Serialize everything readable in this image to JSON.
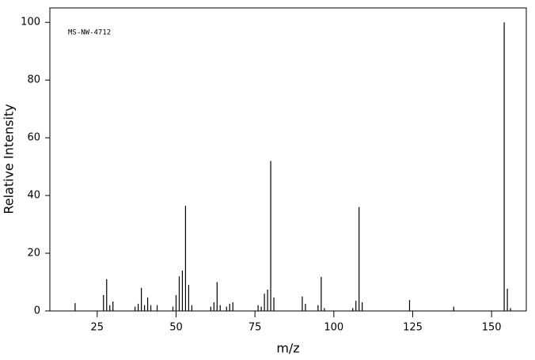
{
  "chart_data": {
    "type": "stem",
    "annotation": "MS-NW-4712",
    "x_label": "m/z",
    "y_label": "Relative Intensity",
    "x": [
      18,
      27,
      28,
      29,
      30,
      37,
      38,
      39,
      40,
      41,
      42,
      44,
      49,
      50,
      51,
      52,
      53,
      54,
      55,
      61,
      62,
      63,
      64,
      66,
      67,
      68,
      76,
      77,
      78,
      79,
      80,
      81,
      90,
      91,
      95,
      96,
      97,
      106,
      107,
      108,
      109,
      124,
      138,
      154,
      155,
      156
    ],
    "values": [
      2.7,
      5.5,
      11,
      2,
      3.3,
      1.5,
      2.5,
      8,
      2,
      4.7,
      2,
      2,
      1.5,
      5.5,
      12,
      14,
      36.4,
      9,
      2,
      1.5,
      3,
      10,
      2,
      1.5,
      2.5,
      3,
      2,
      1.5,
      6,
      7.4,
      52,
      4.7,
      5,
      2.5,
      2,
      11.8,
      1,
      1,
      3.5,
      36,
      3,
      3.8,
      1.5,
      100,
      7.7,
      1
    ],
    "color": "#000000",
    "xlim": [
      10,
      161
    ],
    "ylim": [
      0,
      105
    ],
    "xticks": [
      25,
      50,
      75,
      100,
      125,
      150
    ],
    "yticks": [
      0,
      20,
      40,
      60,
      80,
      100
    ]
  }
}
